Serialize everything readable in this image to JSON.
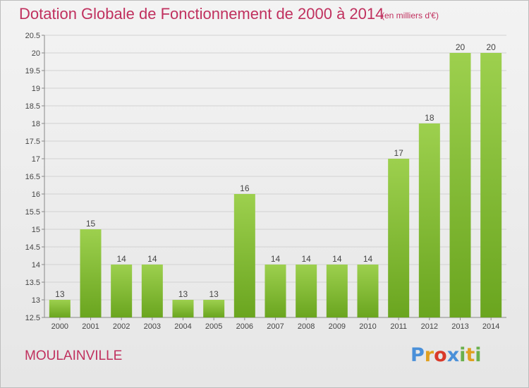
{
  "header": {
    "title": "Dotation Globale de Fonctionnement de 2000 à 2014",
    "subtitle": "(en milliers d'€)"
  },
  "footer": {
    "city": "MOULAINVILLE",
    "logo_text": "Proxiti"
  },
  "colors": {
    "title": "#c0305e",
    "bar_top": "#9dd04e",
    "bar_bottom": "#6aa51f",
    "logo": [
      "#4a90d9",
      "#e0a020",
      "#d93a2a",
      "#4a90d9",
      "#6ab04c",
      "#e0a020",
      "#6ab04c"
    ]
  },
  "chart_data": {
    "type": "bar",
    "categories": [
      "2000",
      "2001",
      "2002",
      "2003",
      "2004",
      "2005",
      "2006",
      "2007",
      "2008",
      "2009",
      "2010",
      "2011",
      "2012",
      "2013",
      "2014"
    ],
    "values": [
      13,
      15,
      14,
      14,
      13,
      13,
      16,
      14,
      14,
      14,
      14,
      17,
      18,
      20,
      20
    ],
    "ylim": [
      12.5,
      20.5
    ],
    "yticks": [
      "12.5",
      "13",
      "13.5",
      "14",
      "14.5",
      "15",
      "15.5",
      "16",
      "16.5",
      "17",
      "17.5",
      "18",
      "18.5",
      "19",
      "19.5",
      "20",
      "20.5"
    ],
    "grid": true
  }
}
